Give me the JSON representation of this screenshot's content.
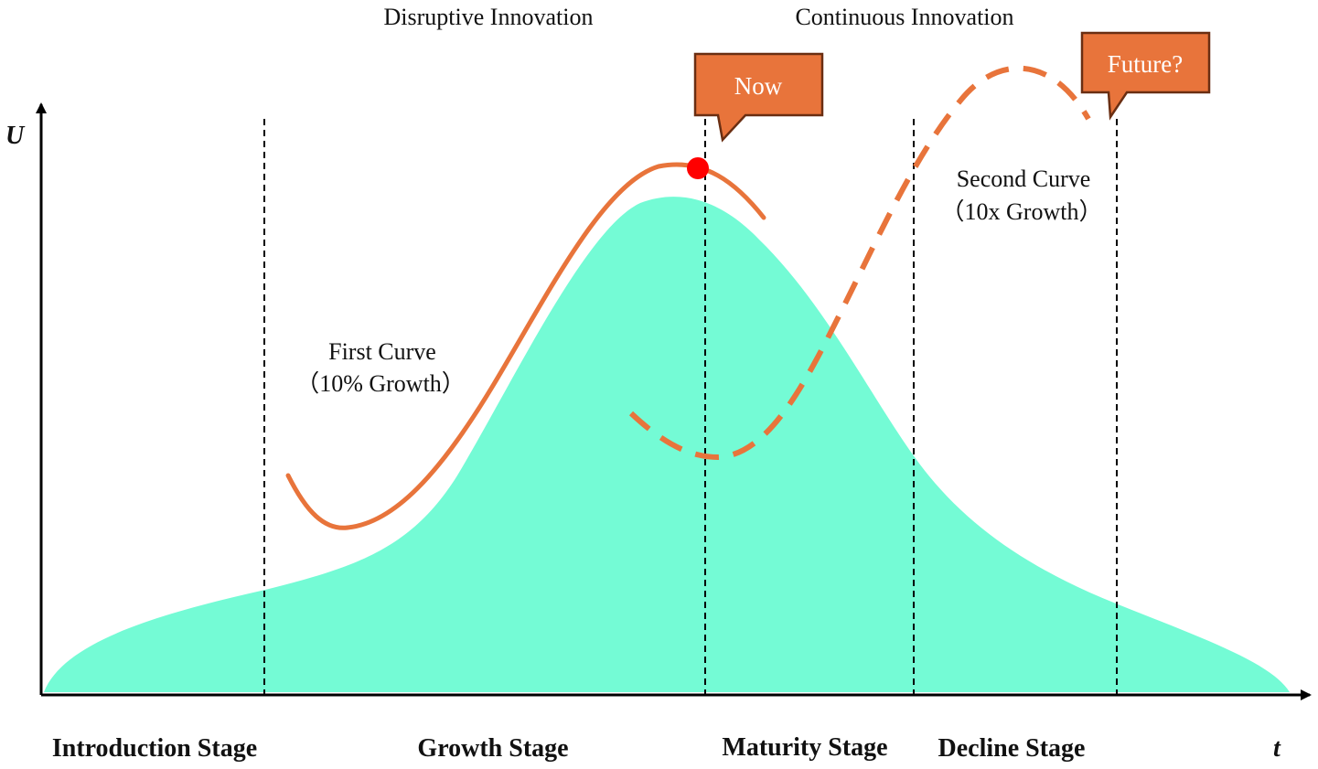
{
  "colors": {
    "area_fill": "#74fbd5",
    "curve": "#e8743b",
    "callout_fill": "#e8743b",
    "callout_border": "#6a2e12",
    "marker": "#ff0000",
    "axis": "#000000"
  },
  "axes": {
    "y_label": "U",
    "x_label": "t"
  },
  "headers": {
    "disruptive": "Disruptive Innovation",
    "continuous": "Continuous Innovation"
  },
  "stages": [
    "Introduction Stage",
    "Growth Stage",
    "Maturity Stage",
    "Decline Stage"
  ],
  "curves": {
    "first_line1": "First Curve",
    "first_line2": "（10% Growth）",
    "second_line1": "Second Curve",
    "second_line2": "（10x Growth）"
  },
  "callouts": {
    "now": "Now",
    "future": "Future?"
  }
}
